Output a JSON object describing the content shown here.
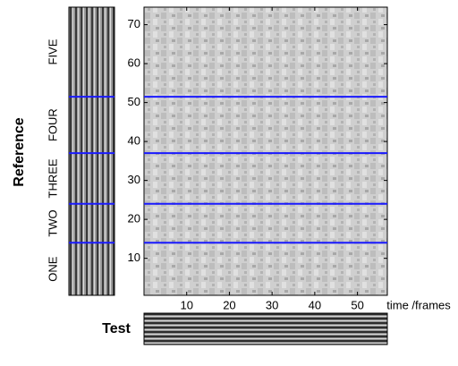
{
  "chart_data": {
    "type": "heatmap",
    "y_label": "Reference",
    "x_label": "time /frames",
    "test_label": "Test",
    "xlim": [
      0,
      57
    ],
    "ylim": [
      0.5,
      74.5
    ],
    "xticks": [
      10,
      20,
      30,
      40,
      50
    ],
    "yticks": [
      10,
      20,
      30,
      40,
      50,
      60,
      70
    ],
    "boundaries": [
      14,
      24,
      37,
      51.5
    ],
    "boundary_color": "#1a1aff",
    "words": [
      "ONE",
      "TWO",
      "THREE",
      "FOUR",
      "FIVE"
    ]
  }
}
